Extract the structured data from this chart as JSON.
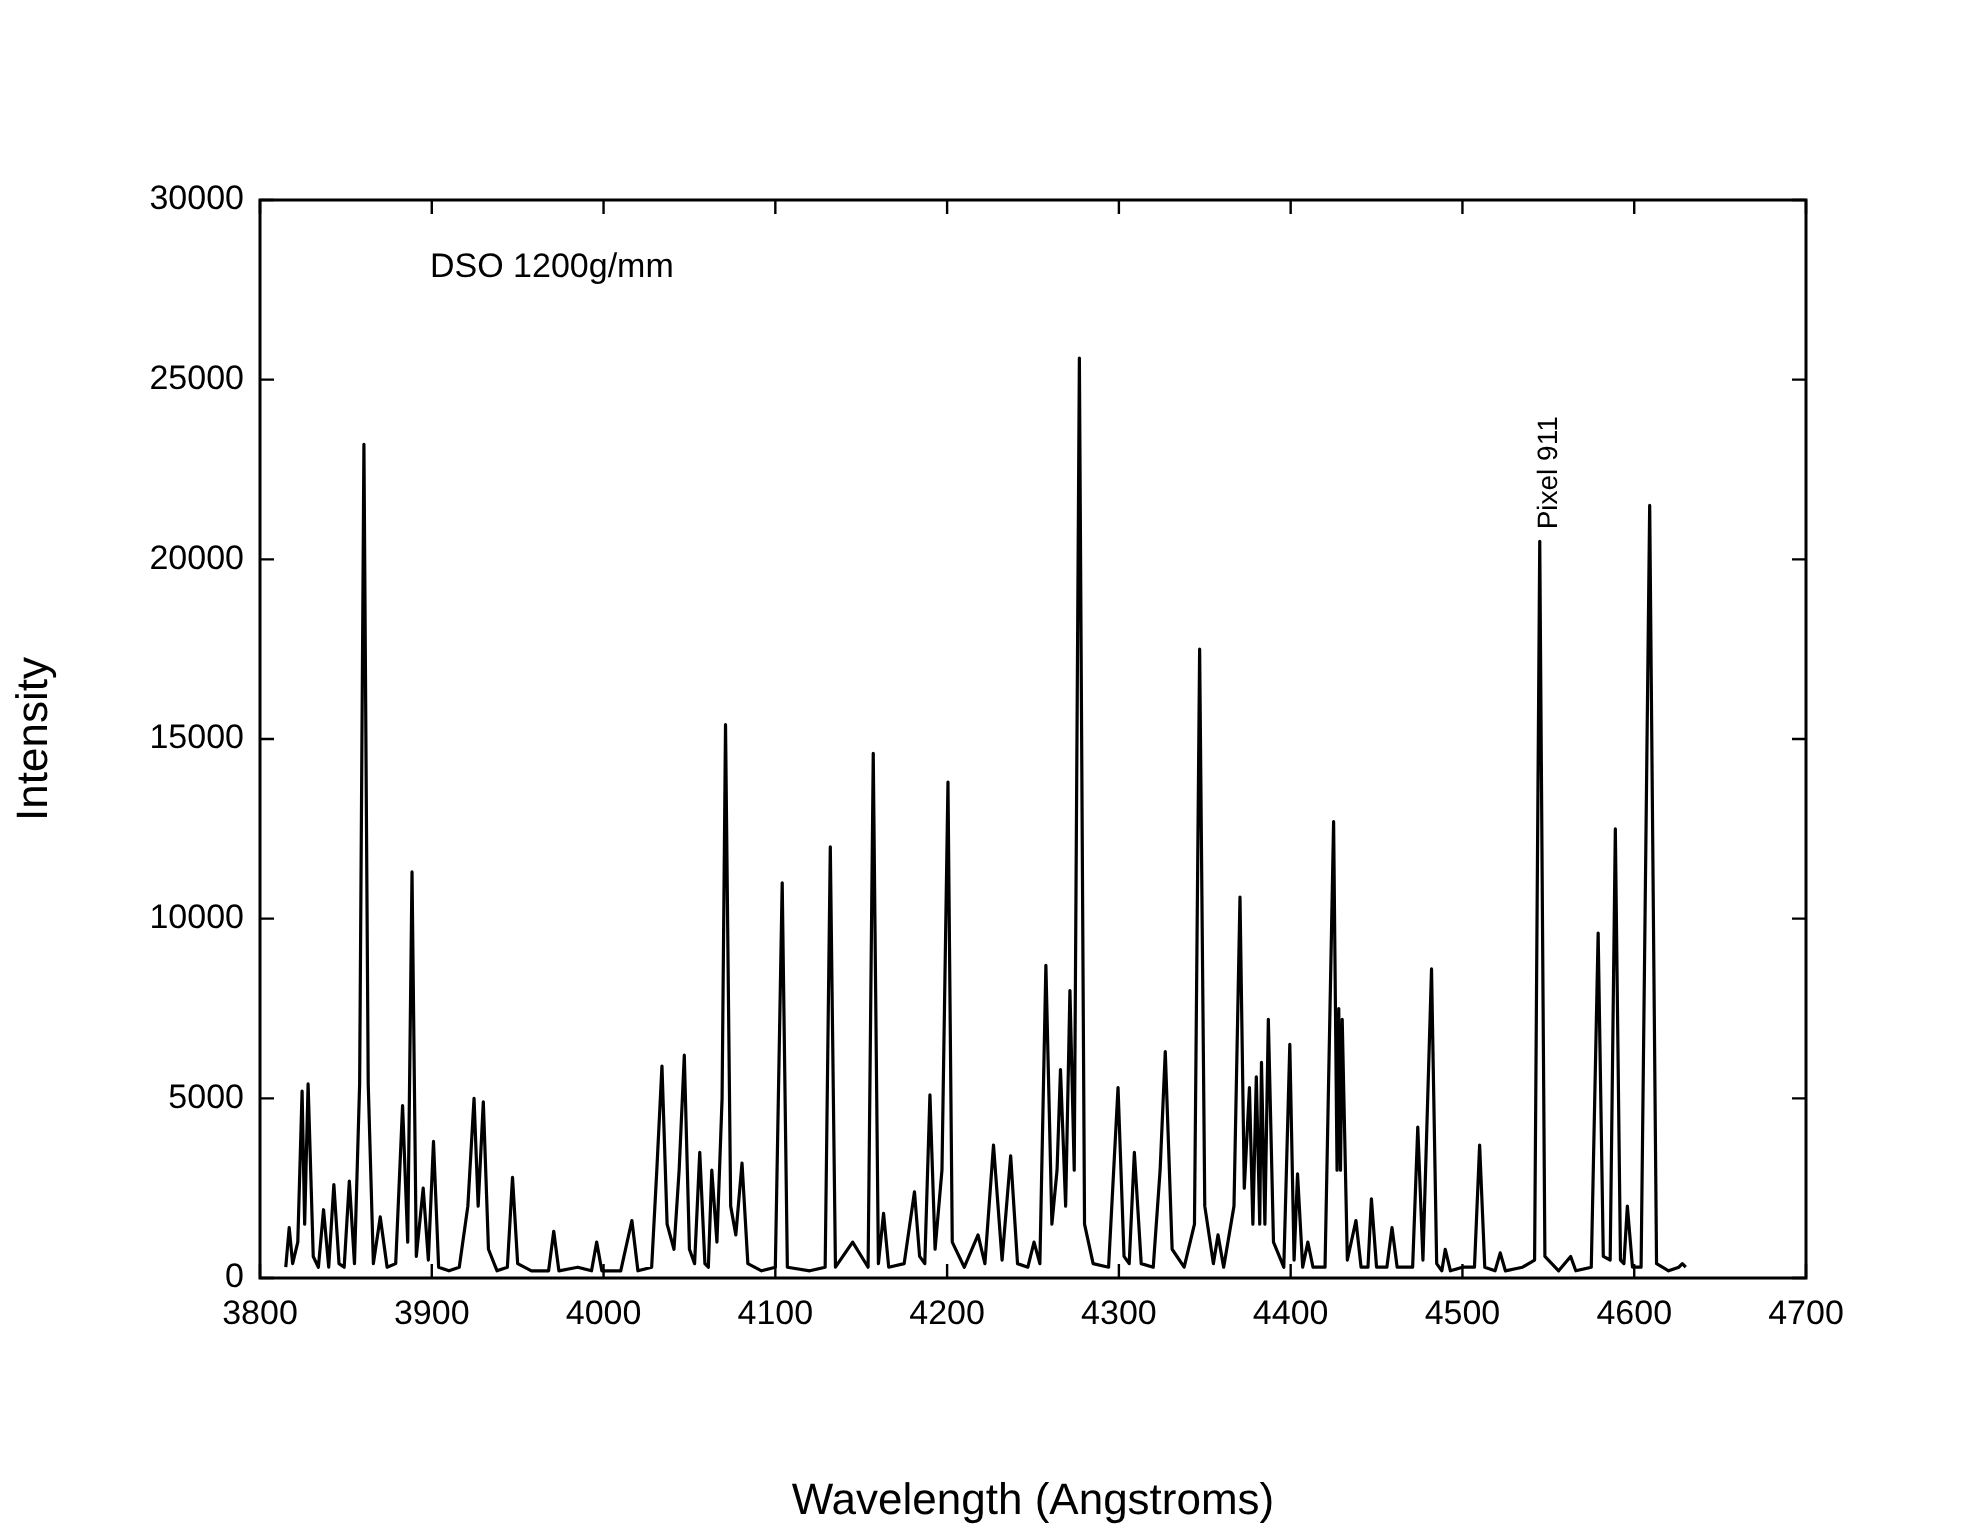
{
  "chart_data": {
    "type": "line",
    "xlabel": "Wavelength (Angstroms)",
    "ylabel": "Intensity",
    "annotations": [
      "DSO 1200g/mm",
      {
        "text": "Pixel 911",
        "x": 4545,
        "y": 20500
      }
    ],
    "xlim": [
      3800,
      4700
    ],
    "xticks": [
      3800,
      3900,
      4000,
      4100,
      4200,
      4300,
      4400,
      4500,
      4600,
      4700
    ],
    "ylim": [
      0,
      30000
    ],
    "yticks": [
      0,
      5000,
      10000,
      15000,
      20000,
      25000,
      30000
    ],
    "grid": false,
    "legend": false,
    "marker": "none",
    "line_style": "solid",
    "series": [
      {
        "color": "#000000",
        "x": [
          3815,
          3817,
          3819,
          3822,
          3824.5,
          3826,
          3828,
          3831,
          3834,
          3837,
          3840,
          3843,
          3846,
          3849,
          3852,
          3855,
          3858,
          3860.5,
          3863,
          3866,
          3870,
          3874,
          3879,
          3883,
          3886,
          3888.5,
          3891,
          3895,
          3898,
          3901,
          3904,
          3910,
          3916,
          3921,
          3924.6,
          3927,
          3930,
          3933,
          3938,
          3944,
          3947,
          3950,
          3958,
          3968,
          3971,
          3974,
          3985,
          3993,
          3996,
          3999,
          4010,
          4016.5,
          4020,
          4028,
          4031,
          4034,
          4037,
          4041,
          4044,
          4047,
          4050,
          4053,
          4056,
          4059,
          4061,
          4063,
          4066,
          4069,
          4071,
          4074,
          4077,
          4080.6,
          4084,
          4092,
          4100,
          4104,
          4107,
          4120,
          4129,
          4132,
          4135,
          4145,
          4154,
          4157,
          4160,
          4163,
          4166,
          4175,
          4181,
          4184,
          4187,
          4190,
          4193,
          4197,
          4200.5,
          4203,
          4210,
          4218,
          4222,
          4227,
          4232,
          4237,
          4241,
          4247,
          4250.6,
          4254,
          4257.5,
          4261,
          4264,
          4266,
          4269,
          4271.5,
          4274,
          4277,
          4280,
          4285,
          4294,
          4299.5,
          4303,
          4306,
          4309,
          4313,
          4320,
          4324,
          4327,
          4331,
          4338,
          4344,
          4347,
          4350,
          4355,
          4357.7,
          4361,
          4367,
          4370.5,
          4373,
          4376,
          4378,
          4380,
          4382,
          4383,
          4385,
          4387,
          4390,
          4396,
          4399.5,
          4402,
          4404,
          4407,
          4410,
          4413,
          4420,
          4425,
          4427,
          4428,
          4429,
          4430,
          4433,
          4438,
          4441,
          4445,
          4447,
          4450,
          4456,
          4459,
          4462,
          4471,
          4474,
          4477,
          4482,
          4485,
          4488,
          4490,
          4493,
          4500,
          4507,
          4510,
          4513,
          4519,
          4522,
          4525,
          4535,
          4542,
          4545,
          4548,
          4556,
          4563,
          4566,
          4575,
          4579,
          4582,
          4586,
          4589,
          4592,
          4594,
          4596,
          4599,
          4604,
          4609,
          4613,
          4620,
          4626,
          4628,
          4630
        ],
        "values": [
          300,
          1400,
          400,
          1000,
          5200,
          1500,
          5400,
          600,
          300,
          1900,
          300,
          2600,
          400,
          300,
          2700,
          400,
          5400,
          23200,
          5400,
          400,
          1700,
          300,
          400,
          4800,
          1000,
          11300,
          600,
          2500,
          500,
          3800,
          300,
          200,
          300,
          2000,
          5000,
          2000,
          4900,
          800,
          200,
          300,
          2800,
          400,
          200,
          200,
          1300,
          200,
          300,
          200,
          1000,
          200,
          200,
          1600,
          200,
          300,
          3000,
          5900,
          1500,
          800,
          3000,
          6200,
          800,
          400,
          3500,
          400,
          300,
          3000,
          1000,
          5000,
          15400,
          2000,
          1200,
          3200,
          400,
          200,
          300,
          11000,
          300,
          200,
          300,
          12000,
          300,
          1000,
          300,
          14600,
          400,
          1800,
          300,
          400,
          2400,
          600,
          400,
          5100,
          800,
          3000,
          13800,
          1000,
          300,
          1200,
          400,
          3700,
          500,
          3400,
          400,
          300,
          1000,
          400,
          8700,
          1500,
          3000,
          5800,
          2000,
          8000,
          3000,
          25600,
          1500,
          400,
          300,
          5300,
          600,
          400,
          3500,
          400,
          300,
          3000,
          6300,
          800,
          300,
          1500,
          17500,
          2000,
          400,
          1200,
          300,
          2000,
          10600,
          2500,
          5300,
          1500,
          5600,
          1500,
          6000,
          1500,
          7200,
          1000,
          300,
          6500,
          500,
          2900,
          300,
          1000,
          300,
          300,
          12700,
          3000,
          7500,
          3000,
          7200,
          500,
          1600,
          300,
          300,
          2200,
          300,
          300,
          1400,
          300,
          300,
          4200,
          500,
          8600,
          400,
          200,
          800,
          200,
          300,
          300,
          3700,
          300,
          200,
          700,
          200,
          300,
          500,
          20500,
          600,
          200,
          600,
          200,
          300,
          9600,
          600,
          500,
          12500,
          500,
          400,
          2000,
          300,
          300,
          21500,
          400,
          200,
          300,
          400,
          300
        ]
      }
    ]
  }
}
